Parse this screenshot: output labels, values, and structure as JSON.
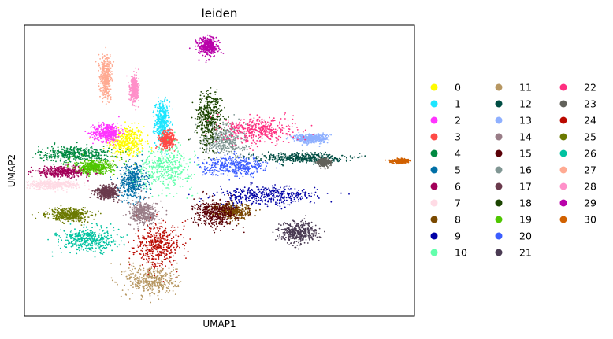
{
  "chart_data": {
    "type": "scatter",
    "title": "leiden",
    "xlabel": "UMAP1",
    "ylabel": "UMAP2",
    "xticks": [],
    "yticks": [],
    "grid": false,
    "legend_position": "right",
    "legend_columns": 3,
    "note": "",
    "categories": [
      "0",
      "1",
      "2",
      "3",
      "4",
      "5",
      "6",
      "7",
      "8",
      "9",
      "10",
      "11",
      "12",
      "13",
      "14",
      "15",
      "16",
      "17",
      "18",
      "19",
      "20",
      "21",
      "22",
      "23",
      "24",
      "25",
      "26",
      "27",
      "28",
      "29",
      "30"
    ],
    "colors": [
      "#fffb00",
      "#1ce6ff",
      "#ff34ff",
      "#ff4a46",
      "#008941",
      "#006fa6",
      "#a30059",
      "#ffdbe5",
      "#7a4900",
      "#0000a6",
      "#63ffac",
      "#b79762",
      "#004d43",
      "#8fb0ff",
      "#997d87",
      "#5a0007",
      "#809693",
      "#6a3a4c",
      "#1b4400",
      "#4fc601",
      "#3b5dff",
      "#4a3b53",
      "#ff2f80",
      "#61615a",
      "#ba0900",
      "#6b7900",
      "#00c2a0",
      "#ffaa92",
      "#ff90c9",
      "#b903aa",
      "#d16100"
    ],
    "clusters_umap_approx": [
      {
        "label": "0",
        "x": -1.0,
        "y": 3.0,
        "sx": 1.3,
        "sy": 1.2
      },
      {
        "label": "1",
        "x": 1.8,
        "y": 4.6,
        "sx": 0.5,
        "sy": 1.6
      },
      {
        "label": "2",
        "x": -2.5,
        "y": 3.8,
        "sx": 1.0,
        "sy": 0.7
      },
      {
        "label": "3",
        "x": 2.2,
        "y": 3.2,
        "sx": 0.5,
        "sy": 0.6
      },
      {
        "label": "4",
        "x": -5.0,
        "y": 2.0,
        "sx": 2.6,
        "sy": 0.6
      },
      {
        "label": "5",
        "x": -0.5,
        "y": -0.3,
        "sx": 1.0,
        "sy": 1.4
      },
      {
        "label": "6",
        "x": -6.0,
        "y": 0.5,
        "sx": 2.2,
        "sy": 0.4
      },
      {
        "label": "7",
        "x": -6.8,
        "y": -0.6,
        "sx": 2.0,
        "sy": 0.3
      },
      {
        "label": "8",
        "x": 7.3,
        "y": -2.8,
        "sx": 1.3,
        "sy": 0.6
      },
      {
        "label": "9",
        "x": 10.0,
        "y": -1.5,
        "sx": 3.6,
        "sy": 0.7
      },
      {
        "label": "10",
        "x": 2.0,
        "y": 0.9,
        "sx": 2.0,
        "sy": 1.6
      },
      {
        "label": "11",
        "x": 1.0,
        "y": -8.6,
        "sx": 1.8,
        "sy": 1.2
      },
      {
        "label": "12",
        "x": 12.5,
        "y": 1.7,
        "sx": 3.2,
        "sy": 0.35
      },
      {
        "label": "13",
        "x": 13.5,
        "y": 3.3,
        "sx": 1.2,
        "sy": 0.35
      },
      {
        "label": "14",
        "x": 0.4,
        "y": -3.0,
        "sx": 1.0,
        "sy": 0.9
      },
      {
        "label": "15",
        "x": 6.0,
        "y": -3.0,
        "sx": 1.5,
        "sy": 1.0
      },
      {
        "label": "16",
        "x": 6.7,
        "y": 3.2,
        "sx": 1.5,
        "sy": 1.2
      },
      {
        "label": "17",
        "x": -2.5,
        "y": -1.2,
        "sx": 0.8,
        "sy": 0.5
      },
      {
        "label": "18",
        "x": 5.5,
        "y": 5.0,
        "sx": 0.9,
        "sy": 2.1
      },
      {
        "label": "19",
        "x": -3.5,
        "y": 0.9,
        "sx": 1.4,
        "sy": 0.5
      },
      {
        "label": "20",
        "x": 7.5,
        "y": 1.0,
        "sx": 2.3,
        "sy": 0.7
      },
      {
        "label": "21",
        "x": 12.5,
        "y": -4.6,
        "sx": 1.3,
        "sy": 0.8
      },
      {
        "label": "22",
        "x": 9.5,
        "y": 4.0,
        "sx": 2.5,
        "sy": 1.0
      },
      {
        "label": "23",
        "x": 14.5,
        "y": 1.3,
        "sx": 0.4,
        "sy": 0.25
      },
      {
        "label": "24",
        "x": 1.5,
        "y": -5.7,
        "sx": 1.6,
        "sy": 1.6
      },
      {
        "label": "25",
        "x": -5.5,
        "y": -3.1,
        "sx": 1.5,
        "sy": 0.5
      },
      {
        "label": "26",
        "x": -4.0,
        "y": -5.2,
        "sx": 2.0,
        "sy": 0.9
      },
      {
        "label": "27",
        "x": -2.6,
        "y": 8.5,
        "sx": 0.4,
        "sy": 1.6
      },
      {
        "label": "28",
        "x": -0.4,
        "y": 7.4,
        "sx": 0.3,
        "sy": 1.0
      },
      {
        "label": "29",
        "x": 5.4,
        "y": 11.0,
        "sx": 0.7,
        "sy": 0.7
      },
      {
        "label": "30",
        "x": 20.5,
        "y": 1.4,
        "sx": 0.6,
        "sy": 0.15
      }
    ],
    "xlim": [
      -9.0,
      21.6
    ],
    "ylim": [
      -11.6,
      12.8
    ]
  }
}
